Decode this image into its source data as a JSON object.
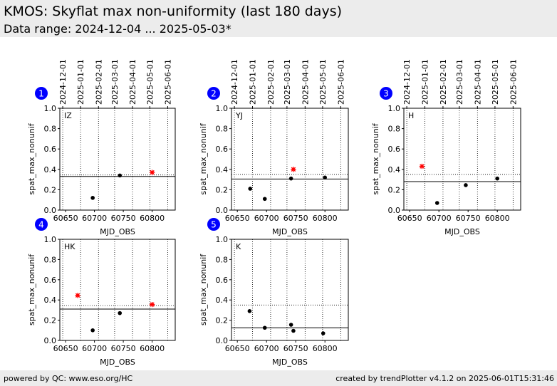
{
  "header": {
    "title": "KMOS: Skyflat max non-uniformity (last 180 days)",
    "subtitle": "Data range: 2024-12-04 ... 2025-05-03*"
  },
  "footer": {
    "left": "powered by QC: www.eso.org/HC",
    "right": "created by trendPlotter v4.1.2 on 2025-06-01T15:31:46"
  },
  "style": {
    "header_bg": "#ececec",
    "badge_color": "#0000ff",
    "point_color": "#000000",
    "outlier_color": "#ff0000"
  },
  "chart_data": [
    {
      "id": "1",
      "label": "IZ",
      "type": "scatter",
      "xlabel": "MJD_OBS",
      "ylabel": "spat_max_nonunif",
      "xlim": [
        60640,
        60840
      ],
      "ylim": [
        0.0,
        1.0
      ],
      "xticks": [
        "60650",
        "60700",
        "60750",
        "60800"
      ],
      "yticks": [
        "0.0",
        "0.2",
        "0.4",
        "0.6",
        "0.8",
        "1.0"
      ],
      "date_ticks": [
        "2024-12-01",
        "2025-01-01",
        "2025-02-01",
        "2025-03-01",
        "2025-04-01",
        "2025-05-01",
        "2025-06-01"
      ],
      "show_xlabel": true,
      "show_date_axis": true,
      "reference_line": 0.33,
      "threshold_line": 0.345,
      "points": [
        [
          60697,
          0.12
        ],
        [
          60744,
          0.34
        ]
      ],
      "outliers": [
        [
          60800,
          0.37
        ]
      ]
    },
    {
      "id": "2",
      "label": "YJ",
      "type": "scatter",
      "xlabel": "MJD_OBS",
      "ylabel": "spat_max_nonunif",
      "xlim": [
        60640,
        60840
      ],
      "ylim": [
        0.0,
        1.0
      ],
      "xticks": [
        "60650",
        "60700",
        "60750",
        "60800"
      ],
      "yticks": [
        "0.0",
        "0.2",
        "0.4",
        "0.6",
        "0.8",
        "1.0"
      ],
      "date_ticks": [
        "2024-12-01",
        "2025-01-01",
        "2025-02-01",
        "2025-03-01",
        "2025-04-01",
        "2025-05-01",
        "2025-06-01"
      ],
      "show_xlabel": true,
      "show_date_axis": true,
      "reference_line": 0.305,
      "threshold_line": 0.35,
      "points": [
        [
          60672,
          0.21
        ],
        [
          60697,
          0.11
        ],
        [
          60742,
          0.31
        ],
        [
          60800,
          0.32
        ]
      ],
      "outliers": [
        [
          60746,
          0.4
        ]
      ]
    },
    {
      "id": "3",
      "label": "H",
      "type": "scatter",
      "xlabel": "MJD_OBS",
      "ylabel": "spat_max_nonunif",
      "xlim": [
        60640,
        60840
      ],
      "ylim": [
        0.0,
        1.0
      ],
      "xticks": [
        "60650",
        "60700",
        "60750",
        "60800"
      ],
      "yticks": [
        "0.0",
        "0.2",
        "0.4",
        "0.6",
        "0.8",
        "1.0"
      ],
      "date_ticks": [
        "2024-12-01",
        "2025-01-01",
        "2025-02-01",
        "2025-03-01",
        "2025-04-01",
        "2025-05-01",
        "2025-06-01"
      ],
      "show_xlabel": true,
      "show_date_axis": true,
      "reference_line": 0.28,
      "threshold_line": 0.35,
      "points": [
        [
          60697,
          0.07
        ],
        [
          60746,
          0.245
        ],
        [
          60800,
          0.31
        ]
      ],
      "outliers": [
        [
          60671,
          0.43
        ]
      ]
    },
    {
      "id": "4",
      "label": "HK",
      "type": "scatter",
      "xlabel": "MJD_OBS",
      "ylabel": "spat_max_nonunif",
      "xlim": [
        60640,
        60840
      ],
      "ylim": [
        0.0,
        1.0
      ],
      "xticks": [
        "60650",
        "60700",
        "60750",
        "60800"
      ],
      "yticks": [
        "0.0",
        "0.2",
        "0.4",
        "0.6",
        "0.8",
        "1.0"
      ],
      "date_ticks": [],
      "show_xlabel": true,
      "show_date_axis": false,
      "reference_line": 0.31,
      "threshold_line": 0.345,
      "points": [
        [
          60697,
          0.1
        ],
        [
          60744,
          0.27
        ]
      ],
      "outliers": [
        [
          60671,
          0.445
        ],
        [
          60800,
          0.355
        ]
      ]
    },
    {
      "id": "5",
      "label": "K",
      "type": "scatter",
      "xlabel": "MJD_OBS",
      "ylabel": "spat_max_nonunif",
      "xlim": [
        60640,
        60840
      ],
      "ylim": [
        0.0,
        1.0
      ],
      "xticks": [
        "60650",
        "60700",
        "60750",
        "60800"
      ],
      "yticks": [
        "0.0",
        "0.2",
        "0.4",
        "0.6",
        "0.8",
        "1.0"
      ],
      "date_ticks": [],
      "show_xlabel": true,
      "show_date_axis": false,
      "reference_line": 0.125,
      "threshold_line": 0.35,
      "points": [
        [
          60671,
          0.29
        ],
        [
          60697,
          0.125
        ],
        [
          60742,
          0.155
        ],
        [
          60746,
          0.095
        ],
        [
          60797,
          0.07
        ]
      ],
      "outliers": []
    }
  ]
}
